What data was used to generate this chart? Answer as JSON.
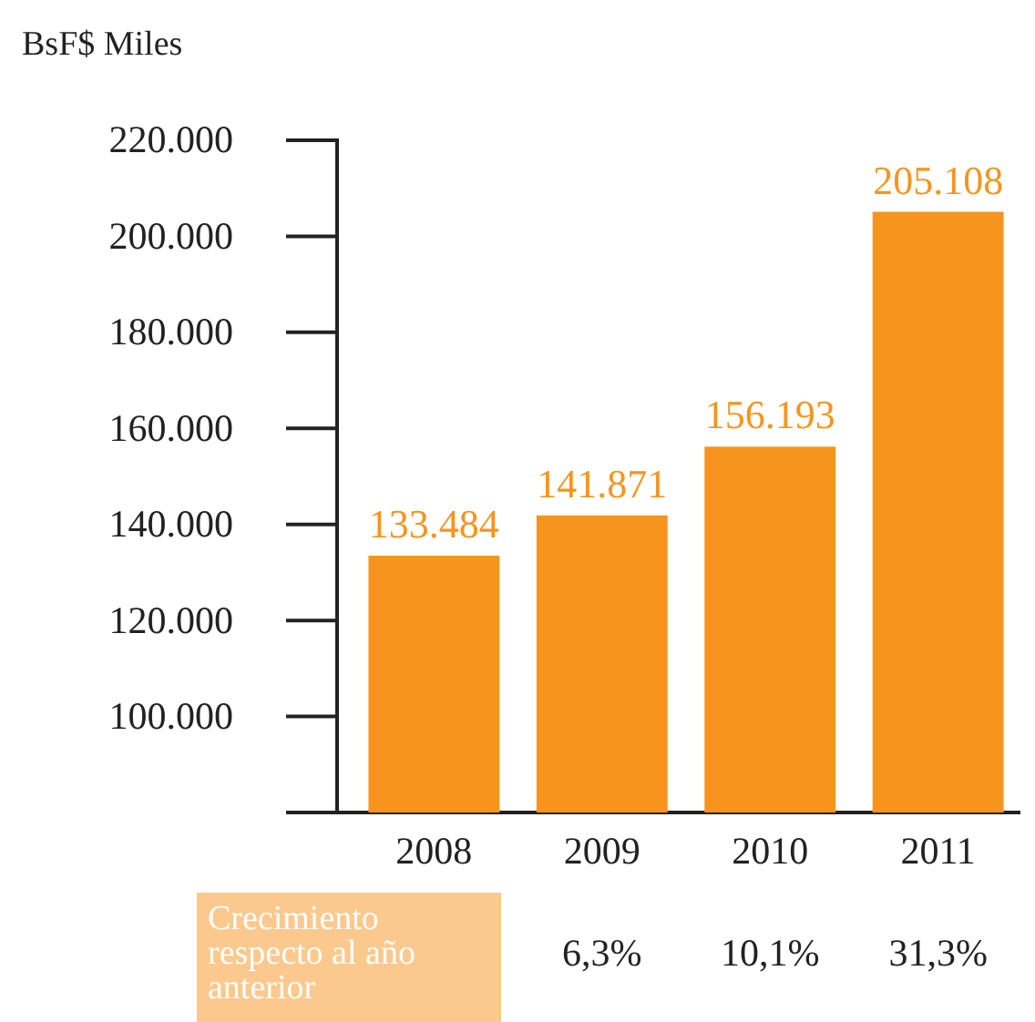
{
  "chart_data": {
    "type": "bar",
    "ylabel": "BsF$ Miles",
    "categories": [
      "2008",
      "2009",
      "2010",
      "2011"
    ],
    "values": [
      133484,
      141871,
      156193,
      205108
    ],
    "value_labels": [
      "133.484",
      "141.871",
      "156.193",
      "205.108"
    ],
    "color": "#f7941d",
    "ylim": [
      80000,
      220000
    ],
    "yticks": [
      {
        "value": 100000,
        "label": "100.000"
      },
      {
        "value": 120000,
        "label": "120.000"
      },
      {
        "value": 140000,
        "label": "140.000"
      },
      {
        "value": 160000,
        "label": "160.000"
      },
      {
        "value": 180000,
        "label": "180.000"
      },
      {
        "value": 200000,
        "label": "200.000"
      },
      {
        "value": 220000,
        "label": "220.000"
      }
    ],
    "grid": false,
    "annotations": [
      "Crecimiento respecto al año anterior",
      "6,3%",
      "10,1%",
      "31,3%"
    ]
  }
}
